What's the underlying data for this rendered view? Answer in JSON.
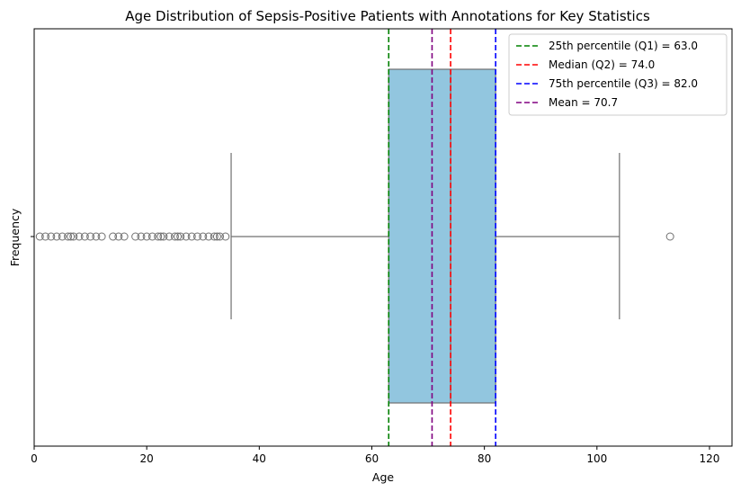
{
  "chart_data": {
    "type": "box",
    "title": "Age Distribution of Sepsis-Positive Patients with Annotations for Key Statistics",
    "xlabel": "Age",
    "ylabel": "Frequency",
    "xlim": [
      0,
      124
    ],
    "xticks": [
      0,
      20,
      40,
      60,
      80,
      100,
      120
    ],
    "grid": false,
    "box": {
      "q1": 63.0,
      "median": 74.0,
      "q3": 82.0,
      "whisker_low": 35,
      "whisker_high": 104,
      "fill_color": "#92c6df",
      "line_color": "#707070"
    },
    "outliers": [
      1,
      2,
      3,
      4,
      5,
      6,
      6.5,
      7,
      8,
      9,
      10,
      11,
      12,
      14,
      15,
      16,
      18,
      19,
      20,
      21,
      22,
      22.5,
      23,
      24,
      25,
      25.5,
      26,
      27,
      28,
      29,
      30,
      31,
      32,
      32.5,
      33,
      34,
      113
    ],
    "reference_lines": [
      {
        "label": "25th percentile (Q1) = 63.0",
        "value": 63.0,
        "color": "#008000",
        "style": "dashed"
      },
      {
        "label": "Median (Q2) = 74.0",
        "value": 74.0,
        "color": "#ff0000",
        "style": "dashed"
      },
      {
        "label": "75th percentile (Q3) = 82.0",
        "value": 82.0,
        "color": "#0000ff",
        "style": "dashed"
      },
      {
        "label": "Mean = 70.7",
        "value": 70.7,
        "color": "#800080",
        "style": "dashed"
      }
    ],
    "legend_position": "top-right"
  }
}
